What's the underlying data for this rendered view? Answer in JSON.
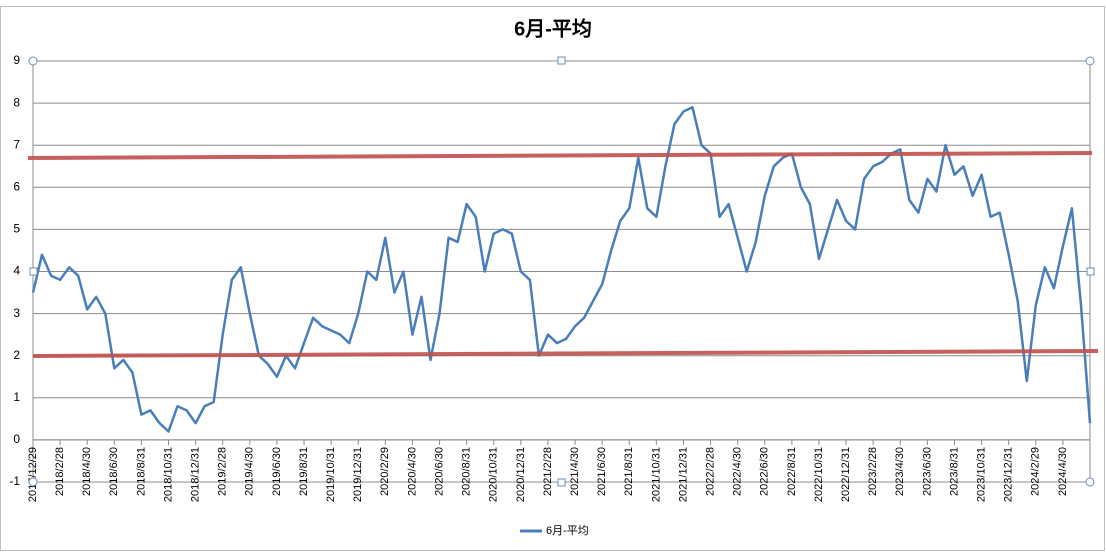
{
  "chart_data": {
    "type": "line",
    "title": "6月-平均",
    "categories": [
      "2017/12/29",
      null,
      null,
      "2018/2/28",
      null,
      null,
      "2018/4/30",
      null,
      null,
      "2018/6/30",
      null,
      null,
      "2018/8/31",
      null,
      null,
      "2018/10/31",
      null,
      null,
      "2018/12/31",
      null,
      null,
      "2019/2/28",
      null,
      null,
      "2019/4/30",
      null,
      null,
      "2019/6/30",
      null,
      null,
      "2019/8/31",
      null,
      null,
      "2019/10/31",
      null,
      null,
      "2019/12/31",
      null,
      null,
      "2020/2/29",
      null,
      null,
      "2020/4/30",
      null,
      null,
      "2020/6/30",
      null,
      null,
      "2020/8/31",
      null,
      null,
      "2020/10/31",
      null,
      null,
      "2020/12/31",
      null,
      null,
      "2021/2/28",
      null,
      null,
      "2021/4/30",
      null,
      null,
      "2021/6/30",
      null,
      null,
      "2021/8/31",
      null,
      null,
      "2021/10/31",
      null,
      null,
      "2021/12/31",
      null,
      null,
      "2022/2/28",
      null,
      null,
      "2022/4/30",
      null,
      null,
      "2022/6/30",
      null,
      null,
      "2022/8/31",
      null,
      null,
      "2022/10/31",
      null,
      null,
      "2022/12/31",
      null,
      null,
      "2023/2/28",
      null,
      null,
      "2023/4/30",
      null,
      null,
      "2023/6/30",
      null,
      null,
      "2023/8/31",
      null,
      null,
      "2023/10/31",
      null,
      null,
      "2023/12/31",
      null,
      null,
      "2024/2/29",
      null,
      null,
      "2024/4/30",
      null,
      null,
      null
    ],
    "series": [
      {
        "name": "6月-平均",
        "color": "#4a7ebb",
        "values": [
          3.5,
          4.4,
          3.9,
          3.8,
          4.1,
          3.9,
          3.1,
          3.4,
          3.0,
          1.7,
          1.9,
          1.6,
          0.6,
          0.7,
          0.4,
          0.2,
          0.8,
          0.7,
          0.4,
          0.8,
          0.9,
          2.5,
          3.8,
          4.1,
          3.0,
          2.0,
          1.8,
          1.5,
          2.0,
          1.7,
          2.3,
          2.9,
          2.7,
          2.6,
          2.5,
          2.3,
          3.0,
          4.0,
          3.8,
          4.8,
          3.5,
          4.0,
          2.5,
          3.4,
          1.9,
          3.0,
          4.8,
          4.7,
          5.6,
          5.3,
          4.0,
          4.9,
          5.0,
          4.9,
          4.0,
          3.8,
          2.0,
          2.5,
          2.3,
          2.4,
          2.7,
          2.9,
          3.3,
          3.7,
          4.5,
          5.2,
          5.5,
          6.7,
          5.5,
          5.3,
          6.5,
          7.5,
          7.8,
          7.9,
          7.0,
          6.8,
          5.3,
          5.6,
          4.8,
          4.0,
          4.7,
          5.8,
          6.5,
          6.7,
          6.8,
          6.0,
          5.6,
          4.3,
          5.0,
          5.7,
          5.2,
          5.0,
          6.2,
          6.5,
          6.6,
          6.8,
          6.9,
          5.7,
          5.4,
          6.2,
          5.9,
          7.0,
          6.3,
          6.5,
          5.8,
          6.3,
          5.3,
          5.4,
          4.4,
          3.3,
          1.4,
          3.2,
          4.1,
          3.6,
          4.6,
          5.5,
          3.2,
          0.4
        ]
      }
    ],
    "ylim": [
      -1,
      9
    ],
    "yticks": [
      -1,
      0,
      1,
      2,
      3,
      4,
      5,
      6,
      7,
      8,
      9
    ],
    "grid": true,
    "legend": "bottom"
  }
}
